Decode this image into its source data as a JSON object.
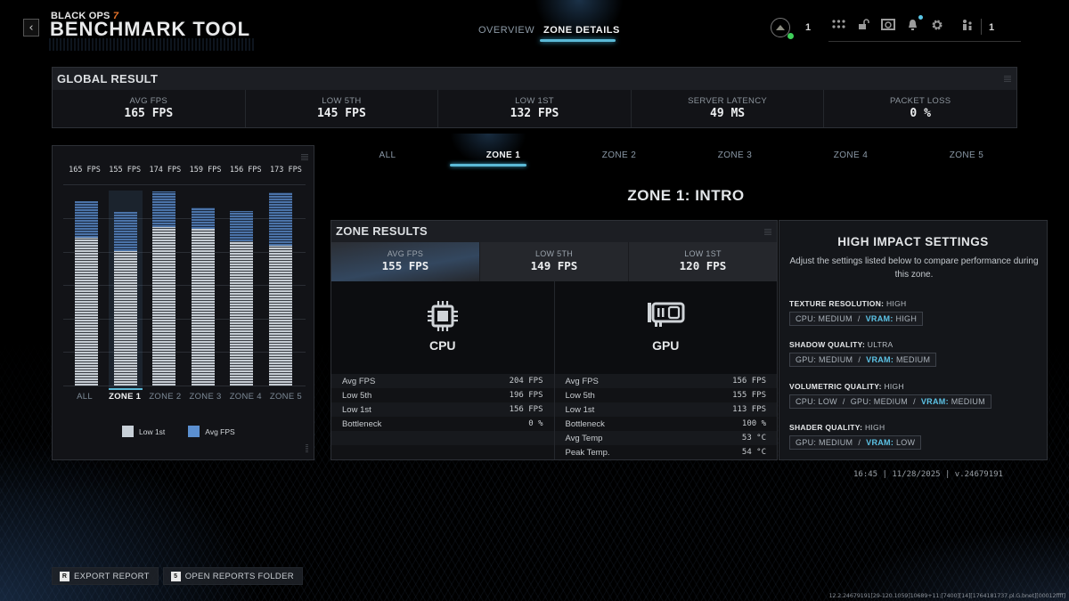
{
  "header": {
    "back_label": "‹",
    "brand_small": "BLACK OPS",
    "brand_num": "7",
    "title": "BENCHMARK TOOL",
    "nav": [
      {
        "label": "OVERVIEW",
        "active": false
      },
      {
        "label": "ZONE DETAILS",
        "active": true
      }
    ],
    "profile_count": "1",
    "icons": [
      "grid-icon",
      "unlock-icon",
      "camera-icon",
      "bell-icon",
      "gear-icon",
      "party-icon"
    ],
    "party_count": "1"
  },
  "global_result": {
    "title": "GLOBAL RESULT",
    "stats": [
      {
        "label": "AVG FPS",
        "value": "165 FPS"
      },
      {
        "label": "LOW 5TH",
        "value": "145 FPS"
      },
      {
        "label": "LOW 1ST",
        "value": "132 FPS"
      },
      {
        "label": "SERVER LATENCY",
        "value": "49 MS"
      },
      {
        "label": "PACKET LOSS",
        "value": "0 %"
      }
    ]
  },
  "chart_data": {
    "type": "bar",
    "title": "",
    "categories": [
      "ALL",
      "ZONE 1",
      "ZONE 2",
      "ZONE 3",
      "ZONE 4",
      "ZONE 5"
    ],
    "top_labels": [
      "165 FPS",
      "155 FPS",
      "174 FPS",
      "159 FPS",
      "156 FPS",
      "173 FPS"
    ],
    "series": [
      {
        "name": "Low 1st",
        "color": "#c5ccd3",
        "values": [
          132,
          120,
          142,
          140,
          129,
          125
        ]
      },
      {
        "name": "Avg FPS",
        "color": "#5b8fd0",
        "values": [
          165,
          155,
          174,
          159,
          156,
          173
        ]
      }
    ],
    "selected": "ZONE 1",
    "xlabel": "",
    "ylabel": "",
    "ylim": [
      0,
      180
    ],
    "grid": true,
    "legend_position": "bottom"
  },
  "zone_tabs": [
    {
      "label": "ALL",
      "active": false
    },
    {
      "label": "ZONE 1",
      "active": true
    },
    {
      "label": "ZONE 2",
      "active": false
    },
    {
      "label": "ZONE 3",
      "active": false
    },
    {
      "label": "ZONE 4",
      "active": false
    },
    {
      "label": "ZONE 5",
      "active": false
    }
  ],
  "zone_title": "ZONE 1: INTRO",
  "zone_results": {
    "title": "ZONE RESULTS",
    "stats": [
      {
        "label": "AVG FPS",
        "value": "155 FPS"
      },
      {
        "label": "LOW 5TH",
        "value": "149 FPS"
      },
      {
        "label": "LOW 1ST",
        "value": "120 FPS"
      }
    ],
    "cpu": {
      "name": "CPU",
      "rows": [
        {
          "key": "Avg FPS",
          "value": "204 FPS"
        },
        {
          "key": "Low 5th",
          "value": "196 FPS"
        },
        {
          "key": "Low 1st",
          "value": "156 FPS"
        },
        {
          "key": "Bottleneck",
          "value": "0 %"
        },
        {
          "key": "",
          "value": ""
        },
        {
          "key": "",
          "value": ""
        }
      ]
    },
    "gpu": {
      "name": "GPU",
      "rows": [
        {
          "key": "Avg FPS",
          "value": "156 FPS"
        },
        {
          "key": "Low 5th",
          "value": "155 FPS"
        },
        {
          "key": "Low 1st",
          "value": "113 FPS"
        },
        {
          "key": "Bottleneck",
          "value": "100 %"
        },
        {
          "key": "Avg Temp",
          "value": "53 °C"
        },
        {
          "key": "Peak Temp.",
          "value": "54 °C"
        }
      ]
    }
  },
  "high_impact": {
    "title": "HIGH IMPACT SETTINGS",
    "description": "Adjust the settings listed below to compare performance during this zone.",
    "settings": [
      {
        "name": "TEXTURE RESOLUTION:",
        "level": "HIGH",
        "impacts": [
          {
            "k": "CPU:",
            "v": "MEDIUM"
          },
          {
            "k": "VRAM:",
            "v": "HIGH"
          }
        ]
      },
      {
        "name": "SHADOW QUALITY:",
        "level": "ULTRA",
        "impacts": [
          {
            "k": "GPU:",
            "v": "MEDIUM"
          },
          {
            "k": "VRAM:",
            "v": "MEDIUM"
          }
        ]
      },
      {
        "name": "VOLUMETRIC QUALITY:",
        "level": "HIGH",
        "impacts": [
          {
            "k": "CPU:",
            "v": "LOW"
          },
          {
            "k": "GPU:",
            "v": "MEDIUM"
          },
          {
            "k": "VRAM:",
            "v": "MEDIUM"
          }
        ]
      },
      {
        "name": "SHADER QUALITY:",
        "level": "HIGH",
        "impacts": [
          {
            "k": "GPU:",
            "v": "MEDIUM"
          },
          {
            "k": "VRAM:",
            "v": "LOW"
          }
        ]
      }
    ]
  },
  "footer": {
    "info": "16:45 | 11/28/2025 | v.24679191",
    "actions": [
      {
        "key": "R",
        "label": "EXPORT REPORT"
      },
      {
        "key": "5",
        "label": "OPEN REPORTS FOLDER"
      }
    ],
    "build": "12.2.24679191[29-120.1059]10689+11:[7400][14][1764181737.pl.G.bnet][00012ffff]"
  },
  "colors": {
    "accent": "#5bb9d6",
    "vram": "#5cc3e6",
    "avg_bar": "#4b73a8",
    "low_bar": "#c5ccd3",
    "status_online": "#3fcf5a"
  }
}
